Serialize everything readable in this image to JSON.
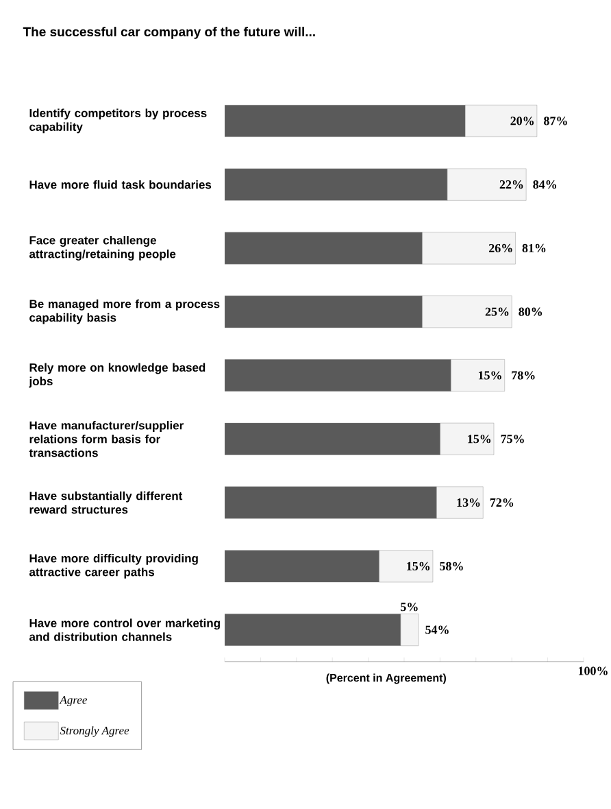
{
  "chart_data": {
    "type": "bar",
    "orientation": "horizontal",
    "stacked": true,
    "title": "The successful car company of the future will...",
    "xlabel": "(Percent in Agreement)",
    "categories": [
      "Identify competitors by process capability",
      "Have more fluid task boundaries",
      "Face greater challenge attracting/retaining people",
      "Be managed more from a process capability basis",
      "Rely more on knowledge based jobs",
      "Have manufacturer/supplier relations form basis for transactions",
      "Have substantially different reward structures",
      "Have more difficulty providing attractive career paths",
      "Have more control over marketing and distribution channels"
    ],
    "series": [
      {
        "name": "Agree",
        "color": "#5a5a5a",
        "values": [
          67,
          62,
          55,
          55,
          63,
          60,
          59,
          43,
          49
        ]
      },
      {
        "name": "Strongly Agree",
        "color": "#f4f4f4",
        "values": [
          20,
          22,
          26,
          25,
          15,
          15,
          13,
          15,
          5
        ],
        "value_labels": [
          "20%",
          "22%",
          "26%",
          "25%",
          "15%",
          "15%",
          "13%",
          "15%",
          "5%"
        ]
      }
    ],
    "totals": [
      "87%",
      "84%",
      "81%",
      "80%",
      "78%",
      "75%",
      "72%",
      "58%",
      "54%"
    ],
    "xlim": [
      0,
      100
    ],
    "annotations": [
      "100%"
    ],
    "legend": "bottom left"
  }
}
